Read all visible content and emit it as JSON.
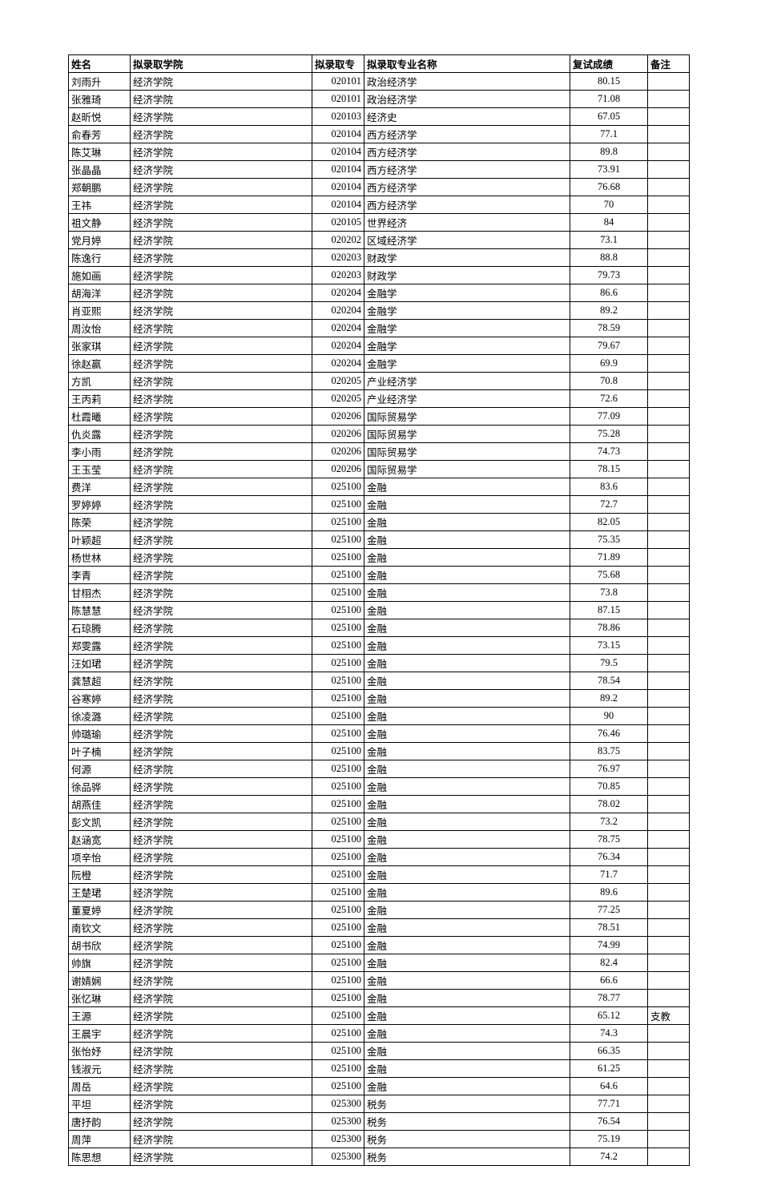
{
  "columns": {
    "name": "姓名",
    "college": "拟录取学院",
    "code": "拟录取专",
    "major": "拟录取专业名称",
    "score": "复试成绩",
    "note": "备注"
  },
  "rows": [
    {
      "name": "刘雨升",
      "college": "经济学院",
      "code": "020101",
      "major": "政治经济学",
      "score": "80.15",
      "note": ""
    },
    {
      "name": "张雅琦",
      "college": "经济学院",
      "code": "020101",
      "major": "政治经济学",
      "score": "71.08",
      "note": ""
    },
    {
      "name": "赵昕悦",
      "college": "经济学院",
      "code": "020103",
      "major": "经济史",
      "score": "67.05",
      "note": ""
    },
    {
      "name": "俞春芳",
      "college": "经济学院",
      "code": "020104",
      "major": "西方经济学",
      "score": "77.1",
      "note": ""
    },
    {
      "name": "陈艾琳",
      "college": "经济学院",
      "code": "020104",
      "major": "西方经济学",
      "score": "89.8",
      "note": ""
    },
    {
      "name": "张晶晶",
      "college": "经济学院",
      "code": "020104",
      "major": "西方经济学",
      "score": "73.91",
      "note": ""
    },
    {
      "name": "郑朝鹏",
      "college": "经济学院",
      "code": "020104",
      "major": "西方经济学",
      "score": "76.68",
      "note": ""
    },
    {
      "name": "王祎",
      "college": "经济学院",
      "code": "020104",
      "major": "西方经济学",
      "score": "70",
      "note": ""
    },
    {
      "name": "祖文静",
      "college": "经济学院",
      "code": "020105",
      "major": "世界经济",
      "score": "84",
      "note": ""
    },
    {
      "name": "党月婷",
      "college": "经济学院",
      "code": "020202",
      "major": "区域经济学",
      "score": "73.1",
      "note": ""
    },
    {
      "name": "陈逸行",
      "college": "经济学院",
      "code": "020203",
      "major": "财政学",
      "score": "88.8",
      "note": ""
    },
    {
      "name": "施如画",
      "college": "经济学院",
      "code": "020203",
      "major": "财政学",
      "score": "79.73",
      "note": ""
    },
    {
      "name": "胡海洋",
      "college": "经济学院",
      "code": "020204",
      "major": "金融学",
      "score": "86.6",
      "note": ""
    },
    {
      "name": "肖亚熙",
      "college": "经济学院",
      "code": "020204",
      "major": "金融学",
      "score": "89.2",
      "note": ""
    },
    {
      "name": "周汝怡",
      "college": "经济学院",
      "code": "020204",
      "major": "金融学",
      "score": "78.59",
      "note": ""
    },
    {
      "name": "张家琪",
      "college": "经济学院",
      "code": "020204",
      "major": "金融学",
      "score": "79.67",
      "note": ""
    },
    {
      "name": "徐赵嬴",
      "college": "经济学院",
      "code": "020204",
      "major": "金融学",
      "score": "69.9",
      "note": ""
    },
    {
      "name": "方凯",
      "college": "经济学院",
      "code": "020205",
      "major": "产业经济学",
      "score": "70.8",
      "note": ""
    },
    {
      "name": "王丙莉",
      "college": "经济学院",
      "code": "020205",
      "major": "产业经济学",
      "score": "72.6",
      "note": ""
    },
    {
      "name": "杜霞曦",
      "college": "经济学院",
      "code": "020206",
      "major": "国际贸易学",
      "score": "77.09",
      "note": ""
    },
    {
      "name": "仇炎露",
      "college": "经济学院",
      "code": "020206",
      "major": "国际贸易学",
      "score": "75.28",
      "note": ""
    },
    {
      "name": "李小雨",
      "college": "经济学院",
      "code": "020206",
      "major": "国际贸易学",
      "score": "74.73",
      "note": ""
    },
    {
      "name": "王玉莹",
      "college": "经济学院",
      "code": "020206",
      "major": "国际贸易学",
      "score": "78.15",
      "note": ""
    },
    {
      "name": "费洋",
      "college": "经济学院",
      "code": "025100",
      "major": "金融",
      "score": "83.6",
      "note": ""
    },
    {
      "name": "罗婷婷",
      "college": "经济学院",
      "code": "025100",
      "major": "金融",
      "score": "72.7",
      "note": ""
    },
    {
      "name": "陈荣",
      "college": "经济学院",
      "code": "025100",
      "major": "金融",
      "score": "82.05",
      "note": ""
    },
    {
      "name": "叶颖超",
      "college": "经济学院",
      "code": "025100",
      "major": "金融",
      "score": "75.35",
      "note": ""
    },
    {
      "name": "杨世林",
      "college": "经济学院",
      "code": "025100",
      "major": "金融",
      "score": "71.89",
      "note": ""
    },
    {
      "name": "李青",
      "college": "经济学院",
      "code": "025100",
      "major": "金融",
      "score": "75.68",
      "note": ""
    },
    {
      "name": "甘栩杰",
      "college": "经济学院",
      "code": "025100",
      "major": "金融",
      "score": "73.8",
      "note": ""
    },
    {
      "name": "陈慧慧",
      "college": "经济学院",
      "code": "025100",
      "major": "金融",
      "score": "87.15",
      "note": ""
    },
    {
      "name": "石琼腾",
      "college": "经济学院",
      "code": "025100",
      "major": "金融",
      "score": "78.86",
      "note": ""
    },
    {
      "name": "郑雯露",
      "college": "经济学院",
      "code": "025100",
      "major": "金融",
      "score": "73.15",
      "note": ""
    },
    {
      "name": "汪如珺",
      "college": "经济学院",
      "code": "025100",
      "major": "金融",
      "score": "79.5",
      "note": ""
    },
    {
      "name": "龚慧超",
      "college": "经济学院",
      "code": "025100",
      "major": "金融",
      "score": "78.54",
      "note": ""
    },
    {
      "name": "谷寒婷",
      "college": "经济学院",
      "code": "025100",
      "major": "金融",
      "score": "89.2",
      "note": ""
    },
    {
      "name": "徐凌潞",
      "college": "经济学院",
      "code": "025100",
      "major": "金融",
      "score": "90",
      "note": ""
    },
    {
      "name": "帅璐瑜",
      "college": "经济学院",
      "code": "025100",
      "major": "金融",
      "score": "76.46",
      "note": ""
    },
    {
      "name": "叶子楠",
      "college": "经济学院",
      "code": "025100",
      "major": "金融",
      "score": "83.75",
      "note": ""
    },
    {
      "name": "何源",
      "college": "经济学院",
      "code": "025100",
      "major": "金融",
      "score": "76.97",
      "note": ""
    },
    {
      "name": "徐品骅",
      "college": "经济学院",
      "code": "025100",
      "major": "金融",
      "score": "70.85",
      "note": ""
    },
    {
      "name": "胡燕佳",
      "college": "经济学院",
      "code": "025100",
      "major": "金融",
      "score": "78.02",
      "note": ""
    },
    {
      "name": "彭文凯",
      "college": "经济学院",
      "code": "025100",
      "major": "金融",
      "score": "73.2",
      "note": ""
    },
    {
      "name": "赵涵宽",
      "college": "经济学院",
      "code": "025100",
      "major": "金融",
      "score": "78.75",
      "note": ""
    },
    {
      "name": "项辛怡",
      "college": "经济学院",
      "code": "025100",
      "major": "金融",
      "score": "76.34",
      "note": ""
    },
    {
      "name": "阮橙",
      "college": "经济学院",
      "code": "025100",
      "major": "金融",
      "score": "71.7",
      "note": ""
    },
    {
      "name": "王楚珺",
      "college": "经济学院",
      "code": "025100",
      "major": "金融",
      "score": "89.6",
      "note": ""
    },
    {
      "name": "董夏婷",
      "college": "经济学院",
      "code": "025100",
      "major": "金融",
      "score": "77.25",
      "note": ""
    },
    {
      "name": "南钦文",
      "college": "经济学院",
      "code": "025100",
      "major": "金融",
      "score": "78.51",
      "note": ""
    },
    {
      "name": "胡书欣",
      "college": "经济学院",
      "code": "025100",
      "major": "金融",
      "score": "74.99",
      "note": ""
    },
    {
      "name": "帅旗",
      "college": "经济学院",
      "code": "025100",
      "major": "金融",
      "score": "82.4",
      "note": ""
    },
    {
      "name": "谢婧娴",
      "college": "经济学院",
      "code": "025100",
      "major": "金融",
      "score": "66.6",
      "note": ""
    },
    {
      "name": "张忆琳",
      "college": "经济学院",
      "code": "025100",
      "major": "金融",
      "score": "78.77",
      "note": ""
    },
    {
      "name": "王源",
      "college": "经济学院",
      "code": "025100",
      "major": "金融",
      "score": "65.12",
      "note": "支教"
    },
    {
      "name": "王晨宇",
      "college": "经济学院",
      "code": "025100",
      "major": "金融",
      "score": "74.3",
      "note": ""
    },
    {
      "name": "张怡妤",
      "college": "经济学院",
      "code": "025100",
      "major": "金融",
      "score": "66.35",
      "note": ""
    },
    {
      "name": "钱淑元",
      "college": "经济学院",
      "code": "025100",
      "major": "金融",
      "score": "61.25",
      "note": ""
    },
    {
      "name": "周岳",
      "college": "经济学院",
      "code": "025100",
      "major": "金融",
      "score": "64.6",
      "note": ""
    },
    {
      "name": "平坦",
      "college": "经济学院",
      "code": "025300",
      "major": "税务",
      "score": "77.71",
      "note": ""
    },
    {
      "name": "唐抒韵",
      "college": "经济学院",
      "code": "025300",
      "major": "税务",
      "score": "76.54",
      "note": ""
    },
    {
      "name": "周萍",
      "college": "经济学院",
      "code": "025300",
      "major": "税务",
      "score": "75.19",
      "note": ""
    },
    {
      "name": "陈思想",
      "college": "经济学院",
      "code": "025300",
      "major": "税务",
      "score": "74.2",
      "note": ""
    }
  ]
}
